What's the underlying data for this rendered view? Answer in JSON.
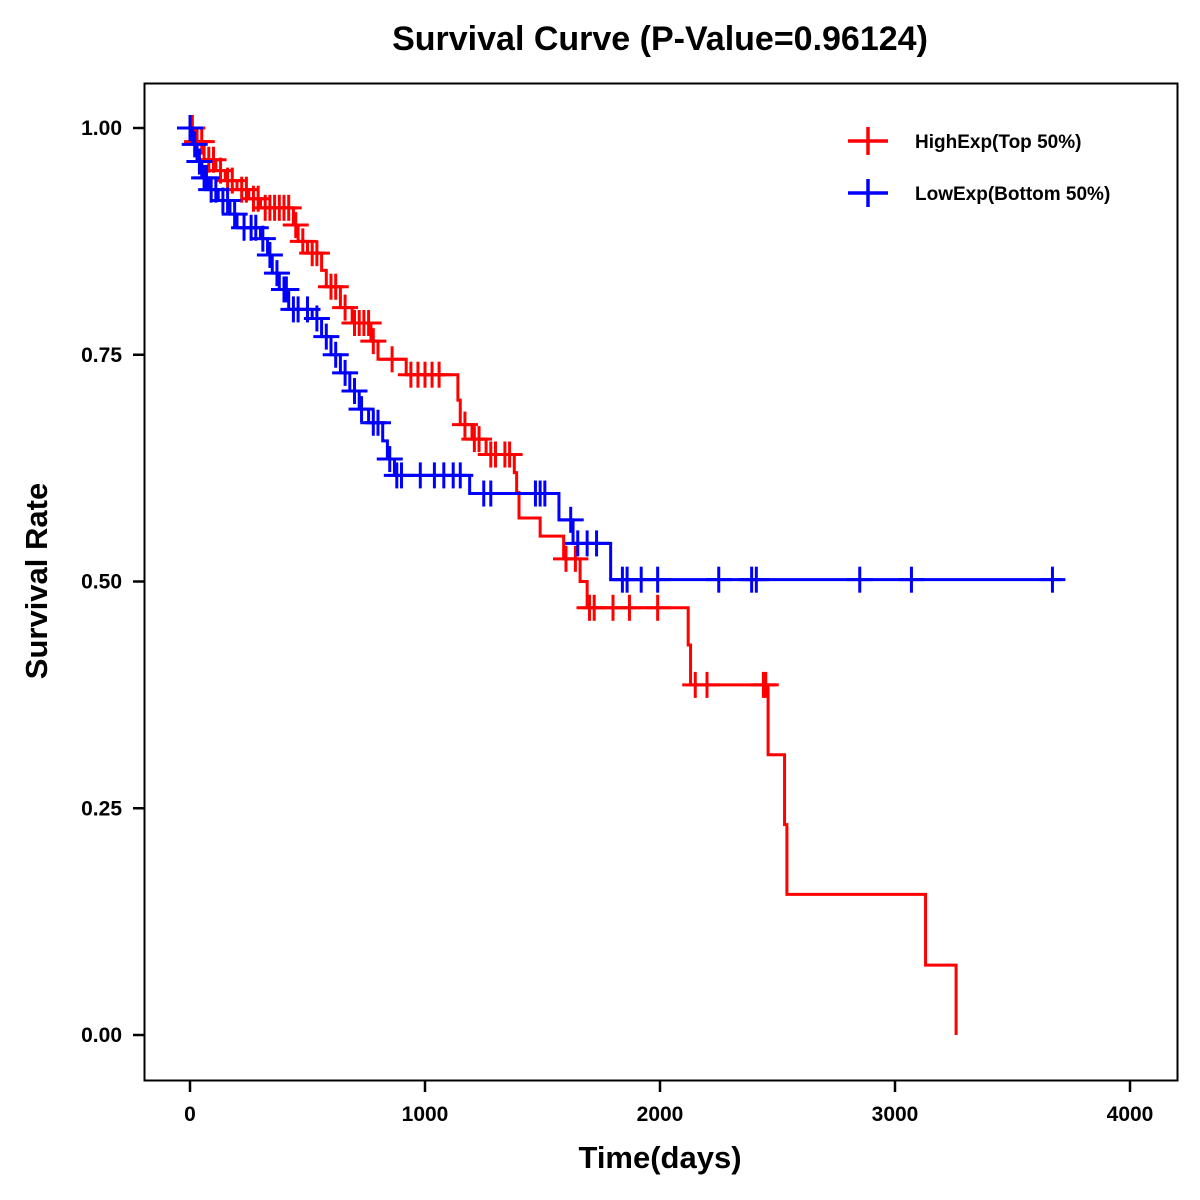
{
  "chart_data": {
    "type": "line",
    "subtype": "kaplan-meier-step",
    "title": "Survival Curve (P-Value=0.96124)",
    "xlabel": "Time(days)",
    "ylabel": "Survival Rate",
    "xlim": [
      -200,
      4200
    ],
    "ylim": [
      -0.045,
      1.055
    ],
    "xticks": [
      0,
      1000,
      2000,
      3000,
      4000
    ],
    "xtick_labels": [
      "0",
      "1000",
      "2000",
      "3000",
      "4000"
    ],
    "yticks": [
      0,
      0.25,
      0.5,
      0.75,
      1.0
    ],
    "ytick_labels": [
      "0.00",
      "0.25",
      "0.50",
      "0.75",
      "1.00"
    ],
    "grid": false,
    "legend": {
      "placement": "top-right",
      "marker": "plus"
    },
    "series": [
      {
        "name": "HighExp(Top 50%)",
        "color": "#ff0000",
        "steps": [
          [
            0,
            1.0
          ],
          [
            20,
            0.985
          ],
          [
            60,
            0.965
          ],
          [
            110,
            0.953
          ],
          [
            150,
            0.942
          ],
          [
            200,
            0.932
          ],
          [
            250,
            0.922
          ],
          [
            300,
            0.912
          ],
          [
            440,
            0.893
          ],
          [
            460,
            0.875
          ],
          [
            500,
            0.862
          ],
          [
            560,
            0.843
          ],
          [
            580,
            0.825
          ],
          [
            640,
            0.802
          ],
          [
            690,
            0.785
          ],
          [
            770,
            0.765
          ],
          [
            800,
            0.745
          ],
          [
            920,
            0.728
          ],
          [
            1140,
            0.7
          ],
          [
            1150,
            0.673
          ],
          [
            1200,
            0.657
          ],
          [
            1260,
            0.64
          ],
          [
            1380,
            0.62
          ],
          [
            1390,
            0.598
          ],
          [
            1400,
            0.57
          ],
          [
            1490,
            0.55
          ],
          [
            1590,
            0.525
          ],
          [
            1660,
            0.5
          ],
          [
            1690,
            0.471
          ],
          [
            2120,
            0.43
          ],
          [
            2130,
            0.386
          ],
          [
            2460,
            0.309
          ],
          [
            2530,
            0.232
          ],
          [
            2540,
            0.155
          ],
          [
            3130,
            0.077
          ],
          [
            3260,
            0.0
          ]
        ],
        "end_time": 3260,
        "censor_times": [
          10,
          30,
          50,
          80,
          100,
          130,
          160,
          180,
          220,
          240,
          270,
          290,
          320,
          340,
          360,
          380,
          400,
          420,
          450,
          480,
          520,
          540,
          600,
          620,
          660,
          700,
          720,
          740,
          760,
          780,
          860,
          940,
          970,
          1000,
          1030,
          1060,
          1170,
          1210,
          1230,
          1280,
          1300,
          1340,
          1360,
          1600,
          1640,
          1700,
          1720,
          1800,
          1870,
          1990,
          2150,
          2200,
          2440,
          2450
        ]
      },
      {
        "name": "LowExp(Bottom 50%)",
        "color": "#0000ff",
        "steps": [
          [
            0,
            1.0
          ],
          [
            10,
            0.982
          ],
          [
            30,
            0.963
          ],
          [
            50,
            0.945
          ],
          [
            80,
            0.932
          ],
          [
            120,
            0.92
          ],
          [
            170,
            0.905
          ],
          [
            200,
            0.89
          ],
          [
            300,
            0.878
          ],
          [
            330,
            0.86
          ],
          [
            350,
            0.84
          ],
          [
            380,
            0.822
          ],
          [
            420,
            0.8
          ],
          [
            520,
            0.79
          ],
          [
            560,
            0.77
          ],
          [
            600,
            0.75
          ],
          [
            640,
            0.73
          ],
          [
            680,
            0.71
          ],
          [
            720,
            0.69
          ],
          [
            760,
            0.675
          ],
          [
            820,
            0.655
          ],
          [
            840,
            0.635
          ],
          [
            870,
            0.617
          ],
          [
            1190,
            0.597
          ],
          [
            1570,
            0.568
          ],
          [
            1630,
            0.542
          ],
          [
            1790,
            0.502
          ]
        ],
        "end_time": 3710,
        "censor_times": [
          0,
          20,
          40,
          60,
          70,
          90,
          110,
          140,
          160,
          190,
          230,
          260,
          280,
          310,
          340,
          370,
          400,
          410,
          440,
          460,
          500,
          540,
          580,
          620,
          660,
          700,
          730,
          780,
          800,
          850,
          880,
          900,
          980,
          1040,
          1080,
          1120,
          1150,
          1250,
          1280,
          1470,
          1490,
          1510,
          1620,
          1650,
          1690,
          1730,
          1840,
          1860,
          1920,
          1990,
          2250,
          2390,
          2410,
          2850,
          3070,
          3670
        ]
      }
    ]
  }
}
